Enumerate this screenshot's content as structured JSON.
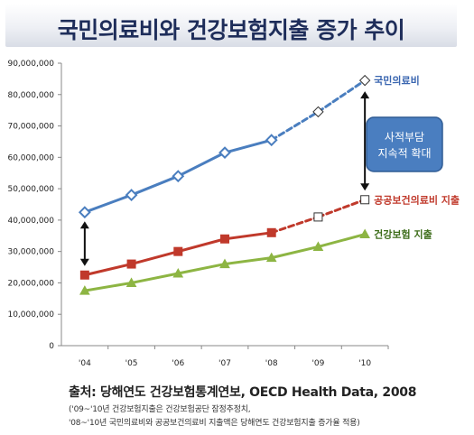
{
  "header": {
    "title": "국민의료비와 건강보험지출 증가 추이"
  },
  "chart_data": {
    "type": "line",
    "categories": [
      "'04",
      "'05",
      "'06",
      "'07",
      "'08",
      "'09",
      "'10"
    ],
    "ylim": [
      0,
      90000000
    ],
    "yticks": [
      "0",
      "10,000,000",
      "20,000,000",
      "30,000,000",
      "40,000,000",
      "50,000,000",
      "60,000,000",
      "70,000,000",
      "80,000,000",
      "90,000,000"
    ],
    "series": [
      {
        "name": "국민의료비",
        "color": "#4a7ebf",
        "values": [
          42500000,
          48000000,
          54000000,
          61500000,
          65500000,
          74500000,
          84500000
        ],
        "projected_from_index": 4,
        "marker": "diamond"
      },
      {
        "name": "공공보건의료비 지출",
        "color": "#c0392b",
        "values": [
          22500000,
          26000000,
          30000000,
          34000000,
          36000000,
          41000000,
          46500000
        ],
        "projected_from_index": 4,
        "marker": "square"
      },
      {
        "name": "건강보험 지출",
        "color": "#8db543",
        "values": [
          17500000,
          20000000,
          23000000,
          26000000,
          28000000,
          31500000,
          35500000
        ],
        "projected_from_index": 99,
        "marker": "triangle"
      }
    ],
    "annotation": {
      "line1": "사적부담",
      "line2": "지속적 확대"
    }
  },
  "footer": {
    "source": "출처: 당해연도 건강보험통계연보, OECD Health Data, 2008",
    "note1": "('09~'10년 건강보험지출은 건강보험공단 잠정추정치,",
    "note2": "'08~'10년 국민의료비와 공공보건의료비 지출액은 당해연도 건강보험지출 증가율 적용)"
  }
}
